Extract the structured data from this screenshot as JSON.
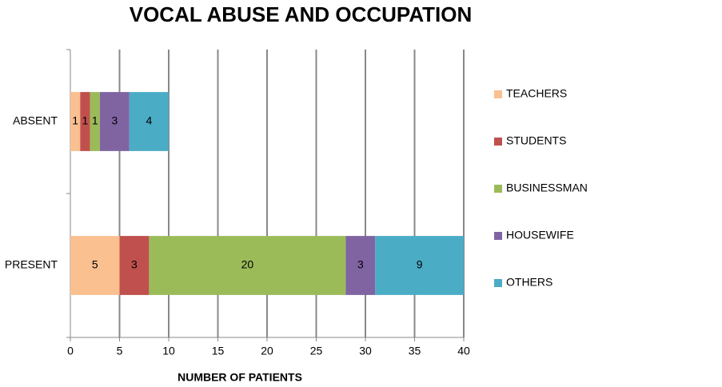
{
  "chart_data": {
    "type": "bar",
    "orientation": "horizontal",
    "stacked": true,
    "title": "VOCAL ABUSE AND OCCUPATION",
    "x_label": "NUMBER OF PATIENTS",
    "categories": [
      "ABSENT",
      "PRESENT"
    ],
    "series": [
      {
        "name": "TEACHERS",
        "color": "#fac090",
        "values": [
          1,
          5
        ]
      },
      {
        "name": "STUDENTS",
        "color": "#c0504d",
        "values": [
          1,
          3
        ]
      },
      {
        "name": "BUSINESSMAN",
        "color": "#9bbb59",
        "values": [
          1,
          20
        ]
      },
      {
        "name": "HOUSEWIFE",
        "color": "#8064a2",
        "values": [
          3,
          3
        ]
      },
      {
        "name": "OTHERS",
        "color": "#4bacc6",
        "values": [
          4,
          9
        ]
      }
    ],
    "xlim": [
      0,
      40
    ],
    "xticks": [
      0,
      5,
      10,
      15,
      20,
      25,
      30,
      35,
      40
    ],
    "grid": true,
    "legend": "right",
    "data_labels": true
  }
}
